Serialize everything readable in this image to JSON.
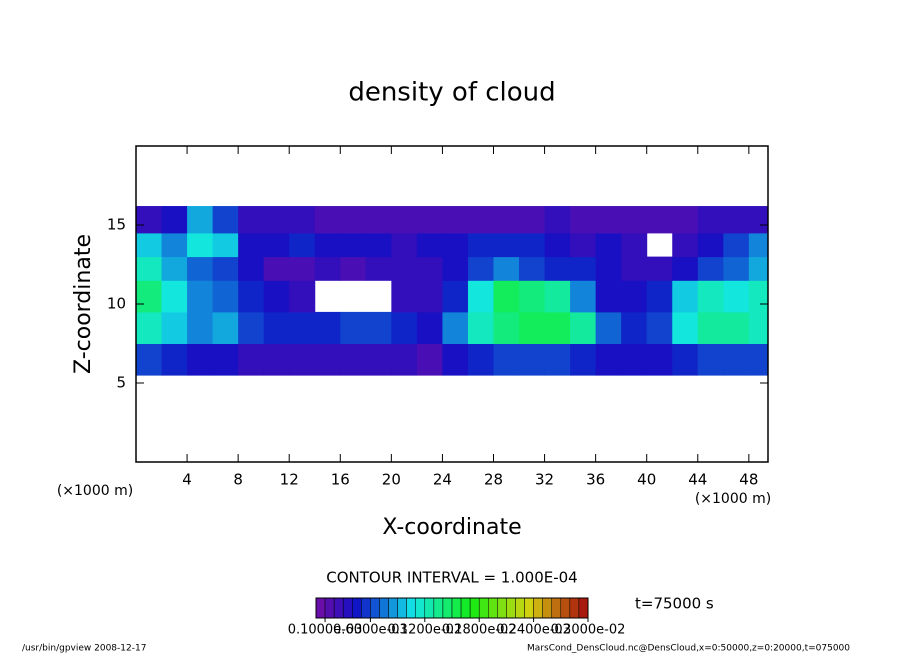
{
  "chart_data": {
    "type": "heatmap",
    "title": "density of cloud",
    "x_label": "X-coordinate",
    "y_label": "Z-coordinate",
    "x_unit": "(×1000 m)",
    "y_unit": "(×1000 m)",
    "xlim": [
      0,
      49.5
    ],
    "xticks": [
      4,
      8,
      12,
      16,
      20,
      24,
      28,
      32,
      36,
      40,
      44,
      48
    ],
    "ylim": [
      0,
      20
    ],
    "yticks": [
      5,
      10,
      15
    ],
    "xbins": [
      0,
      2,
      4,
      6,
      8,
      10,
      12,
      14,
      16,
      18,
      20,
      22,
      24,
      26,
      28,
      30,
      32,
      34,
      36,
      38,
      40,
      42,
      44,
      46,
      48,
      49.5
    ],
    "ybins": [
      5.5,
      7.5,
      9.5,
      11.5,
      13,
      14.5,
      16.2
    ],
    "values": [
      [
        0.0006,
        0.0005,
        0.0004,
        0.0004,
        0.0003,
        0.0003,
        0.0003,
        0.0003,
        0.0003,
        0.0003,
        0.0003,
        0.0002,
        0.0004,
        0.0005,
        0.0006,
        0.0006,
        0.0006,
        0.0005,
        0.0004,
        0.0004,
        0.0004,
        0.0005,
        0.0006,
        0.0006,
        0.0006
      ],
      [
        0.0012,
        0.001,
        0.0008,
        0.0009,
        0.0006,
        0.0005,
        0.0005,
        0.0005,
        0.0006,
        0.0006,
        0.0005,
        0.0004,
        0.0008,
        0.0012,
        0.0014,
        0.0015,
        0.0015,
        0.0013,
        0.0007,
        0.0005,
        0.0006,
        0.0011,
        0.0013,
        0.0013,
        0.0012
      ],
      [
        0.0014,
        0.0011,
        0.0008,
        0.0007,
        0.0005,
        0.0004,
        0.0003,
        null,
        null,
        null,
        0.0003,
        0.0003,
        0.0005,
        0.0011,
        0.0015,
        0.0014,
        0.0013,
        0.0008,
        0.0004,
        0.0004,
        0.0005,
        0.001,
        0.0012,
        0.0011,
        0.0012
      ],
      [
        0.0012,
        0.0009,
        0.0007,
        0.0006,
        0.0004,
        0.0002,
        0.0002,
        0.0003,
        0.0002,
        0.0003,
        0.0003,
        0.0003,
        0.0004,
        0.0006,
        0.0008,
        0.0006,
        0.0005,
        0.0005,
        0.0004,
        0.0003,
        0.0003,
        0.0004,
        0.0006,
        0.0007,
        0.0009
      ],
      [
        0.001,
        0.0008,
        0.0011,
        0.001,
        0.0004,
        0.0004,
        0.0005,
        0.0004,
        0.0004,
        0.0004,
        0.0003,
        0.0004,
        0.0004,
        0.0005,
        0.0005,
        0.0005,
        0.0004,
        0.0003,
        0.0004,
        0.0003,
        null,
        0.0003,
        0.0004,
        0.0006,
        0.0008
      ],
      [
        0.0003,
        0.0004,
        0.0009,
        0.0006,
        0.0003,
        0.0003,
        0.0003,
        0.0002,
        0.0002,
        0.0002,
        0.0002,
        0.0002,
        0.0002,
        0.0002,
        0.0002,
        0.0002,
        0.0003,
        0.0002,
        0.0002,
        0.0002,
        0.0002,
        0.0002,
        0.0003,
        0.0003,
        0.0003
      ]
    ],
    "contour_interval": 0.0001,
    "contour_interval_label": "CONTOUR INTERVAL = 1.000E-04",
    "clim": [
      0,
      0.003
    ],
    "colorbar_ticks": [
      {
        "value": 0.0001,
        "label": "0.1000e-03"
      },
      {
        "value": 0.0006,
        "label": "0.6000e-03"
      },
      {
        "value": 0.0012,
        "label": "0.1200e-02"
      },
      {
        "value": 0.0018,
        "label": "0.1800e-02"
      },
      {
        "value": 0.0024,
        "label": "0.2400e-02"
      },
      {
        "value": 0.003,
        "label": "0.3000e-02"
      }
    ],
    "time_label": "t=75000 s",
    "footer_left": "/usr/bin/gpview  2008-12-17",
    "footer_right": "MarsCond_DensCloud.nc@DensCloud,x=0:50000,z=0:20000,t=075000"
  }
}
